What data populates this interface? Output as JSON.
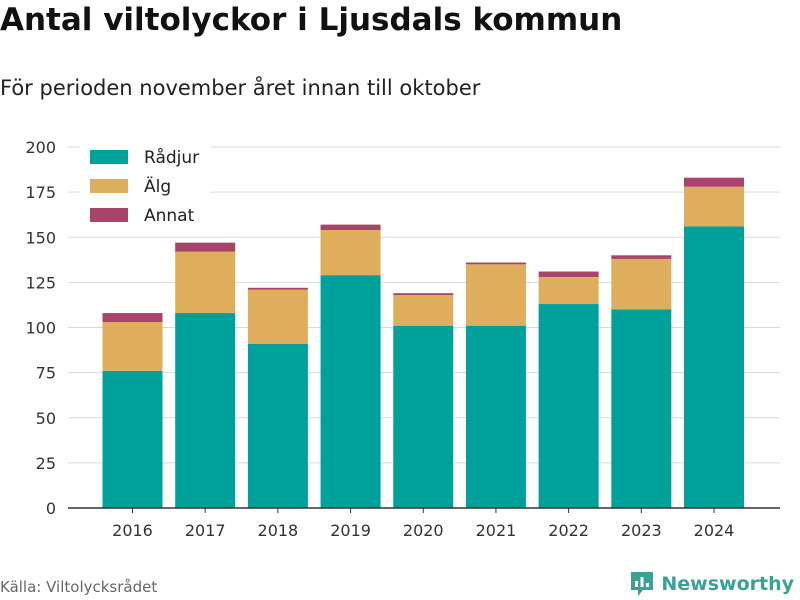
{
  "title": "Antal viltolyckor i Ljusdals kommun",
  "subtitle": "För perioden november året innan till oktober",
  "source": "Källa: Viltolycksrådet",
  "brand": "Newsworthy",
  "colors": {
    "rådjur": "#00a19a",
    "älg": "#dfae5c",
    "annat": "#a8436a",
    "grid": "#d9d9d9",
    "brand": "#39a294"
  },
  "chart_data": {
    "type": "bar",
    "stacked": true,
    "title": "Antal viltolyckor i Ljusdals kommun",
    "subtitle": "För perioden november året innan till oktober",
    "xlabel": "",
    "ylabel": "",
    "categories": [
      "2016",
      "2017",
      "2018",
      "2019",
      "2020",
      "2021",
      "2022",
      "2023",
      "2024"
    ],
    "series": [
      {
        "name": "Rådjur",
        "color": "#00a19a",
        "values": [
          76,
          108,
          91,
          129,
          101,
          101,
          113,
          110,
          156
        ]
      },
      {
        "name": "Älg",
        "color": "#dfae5c",
        "values": [
          27,
          34,
          30,
          25,
          17,
          34,
          15,
          28,
          22
        ]
      },
      {
        "name": "Annat",
        "color": "#a8436a",
        "values": [
          5,
          5,
          1,
          3,
          1,
          1,
          3,
          2,
          5
        ]
      }
    ],
    "ylim": [
      0,
      200
    ],
    "yticks": [
      0,
      25,
      50,
      75,
      100,
      125,
      150,
      175,
      200
    ],
    "grid": true,
    "legend": "top-left"
  }
}
